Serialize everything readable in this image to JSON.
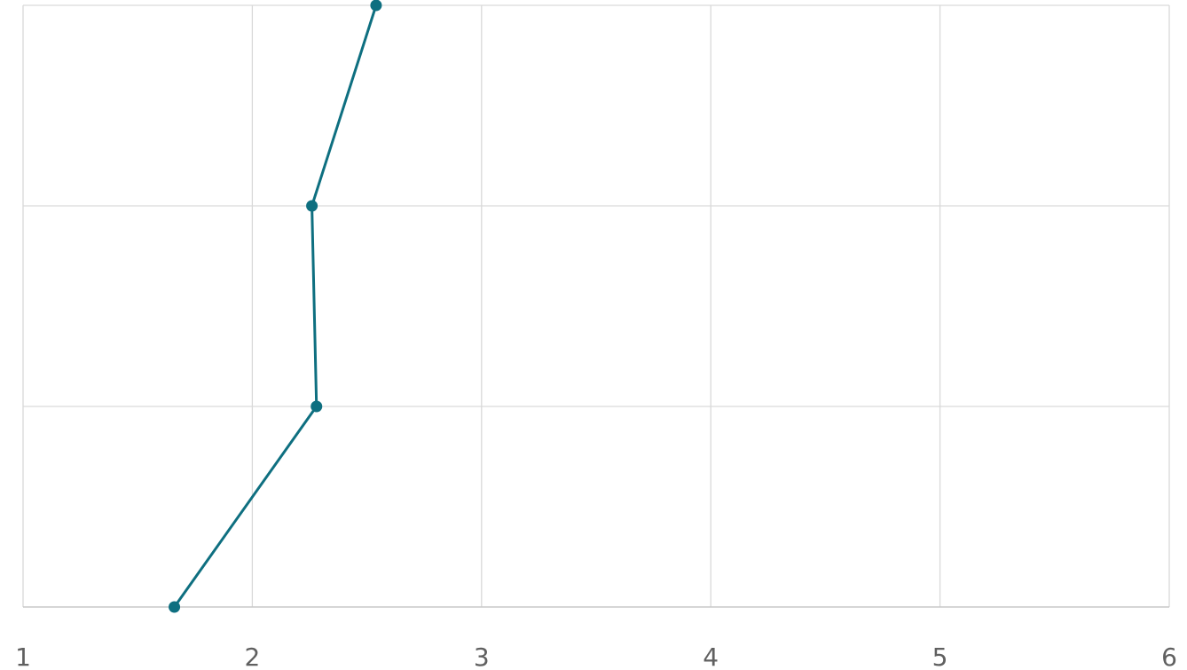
{
  "chart_data": {
    "type": "line",
    "title": "",
    "xlabel": "",
    "ylabel": "",
    "xlim": [
      1,
      6
    ],
    "x_ticks": [
      "1",
      "2",
      "3",
      "4",
      "5",
      "6"
    ],
    "y_categories": 4,
    "grid": true,
    "series": [
      {
        "color": "#0e6f80",
        "x": [
          1.66,
          2.28,
          2.26,
          2.54
        ],
        "y": [
          0,
          1,
          2,
          3
        ]
      }
    ]
  }
}
